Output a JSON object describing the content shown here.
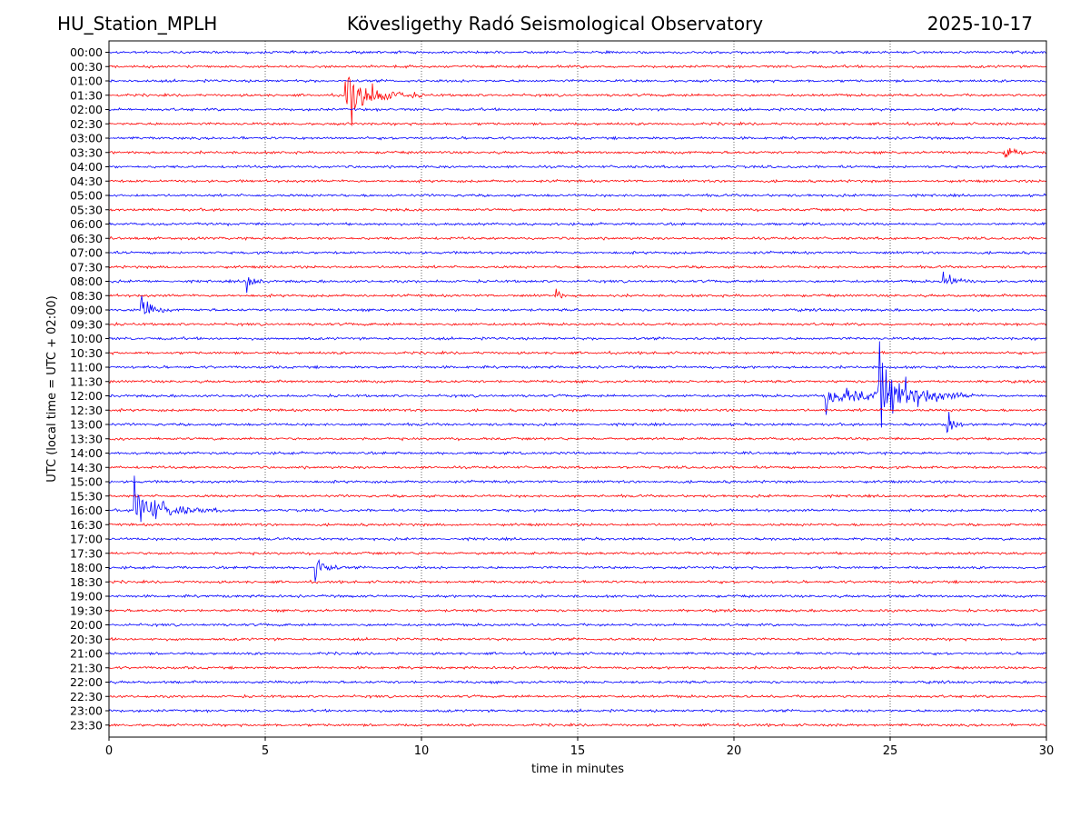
{
  "header": {
    "station": "HU_Station_MPLH",
    "observatory": "Kövesligethy Radó Seismological Observatory",
    "date": "2025-10-17"
  },
  "chart_data": {
    "type": "line",
    "title": "Kövesligethy Radó Seismological Observatory",
    "xlabel": "time in minutes",
    "ylabel": "UTC (local time = UTC + 02:00)",
    "xlim": [
      0,
      30
    ],
    "x_ticks": [
      "0",
      "5",
      "10",
      "15",
      "20",
      "25",
      "30"
    ],
    "x_tick_values": [
      0,
      5,
      10,
      15,
      20,
      25,
      30
    ],
    "grid": "vertical dotted at 5-minute intervals",
    "trace_colors": [
      "#0000ff",
      "#ff0000"
    ],
    "rows": [
      "00:00",
      "00:30",
      "01:00",
      "01:30",
      "02:00",
      "02:30",
      "03:00",
      "03:30",
      "04:00",
      "04:30",
      "05:00",
      "05:30",
      "06:00",
      "06:30",
      "07:00",
      "07:30",
      "08:00",
      "08:30",
      "09:00",
      "09:30",
      "10:00",
      "10:30",
      "11:00",
      "11:30",
      "12:00",
      "12:30",
      "13:00",
      "13:30",
      "14:00",
      "14:30",
      "15:00",
      "15:30",
      "16:00",
      "16:30",
      "17:00",
      "17:30",
      "18:00",
      "18:30",
      "19:00",
      "19:30",
      "20:00",
      "20:30",
      "21:00",
      "21:30",
      "22:00",
      "22:30",
      "23:00",
      "23:30"
    ],
    "events": [
      {
        "row": "01:30",
        "start_min": 7.55,
        "duration_min": 2.6,
        "amplitude": 1.0
      },
      {
        "row": "03:30",
        "start_min": 28.6,
        "duration_min": 1.4,
        "amplitude": 0.2
      },
      {
        "row": "08:00",
        "start_min": 4.4,
        "duration_min": 0.7,
        "amplitude": 0.25
      },
      {
        "row": "08:00",
        "start_min": 26.7,
        "duration_min": 1.2,
        "amplitude": 0.3
      },
      {
        "row": "08:30",
        "start_min": 14.3,
        "duration_min": 0.6,
        "amplitude": 0.15
      },
      {
        "row": "09:00",
        "start_min": 1.0,
        "duration_min": 1.0,
        "amplitude": 0.45
      },
      {
        "row": "12:00",
        "start_min": 22.9,
        "duration_min": 5.0,
        "amplitude": 0.3
      },
      {
        "row": "12:00",
        "start_min": 24.6,
        "duration_min": 3.2,
        "amplitude": 1.0
      },
      {
        "row": "13:00",
        "start_min": 26.8,
        "duration_min": 0.6,
        "amplitude": 0.55
      },
      {
        "row": "16:00",
        "start_min": 0.8,
        "duration_min": 3.0,
        "amplitude": 0.65
      },
      {
        "row": "18:00",
        "start_min": 6.6,
        "duration_min": 0.9,
        "amplitude": 0.6
      }
    ]
  }
}
